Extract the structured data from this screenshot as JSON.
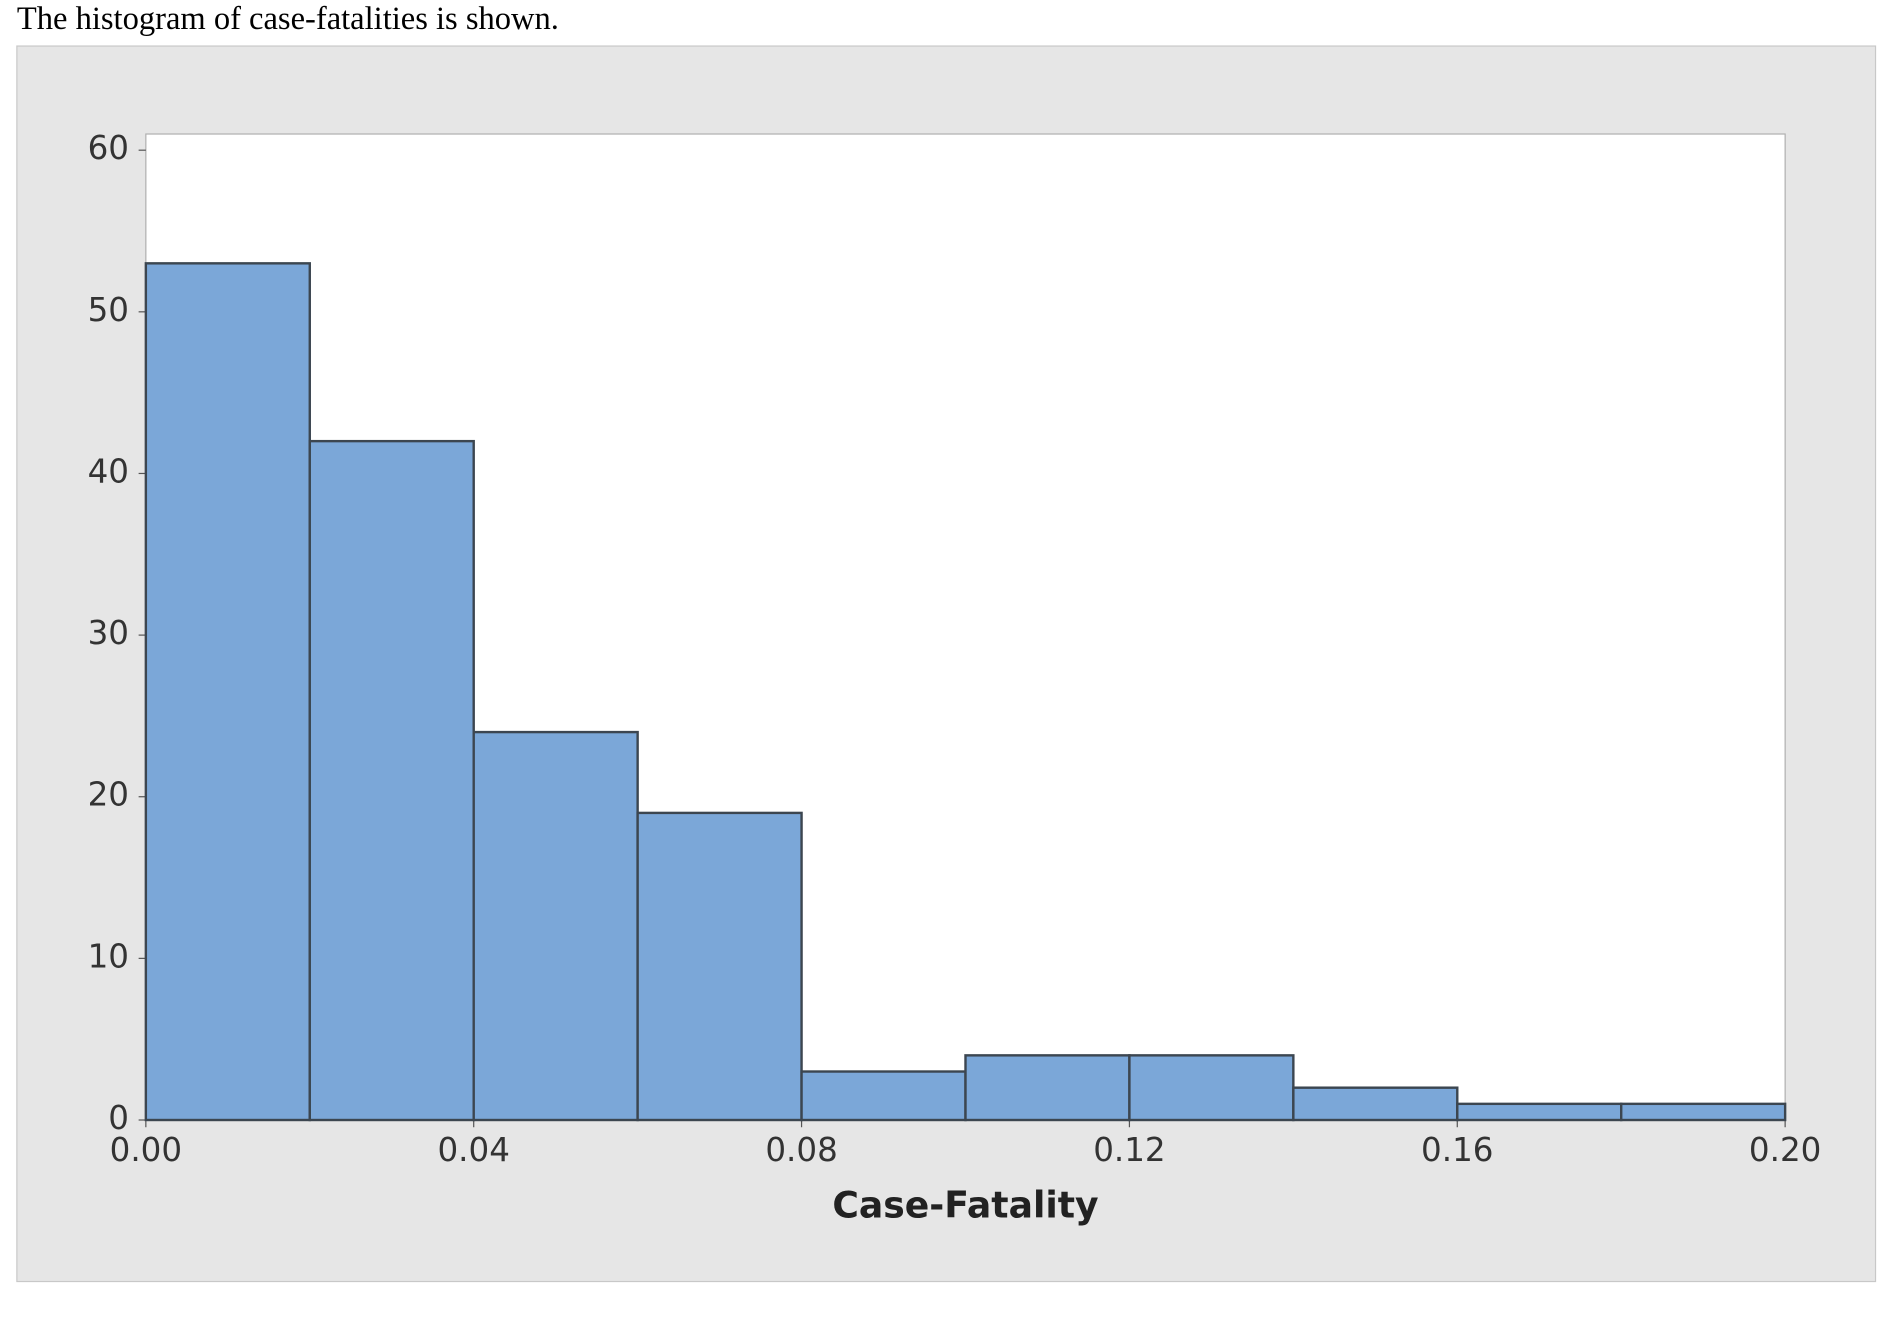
{
  "caption": "The histogram of case-fatalities is shown.",
  "chart_data": {
    "type": "histogram",
    "xlabel": "Case-Fatality",
    "bins": [
      0,
      0.02,
      0.04,
      0.06,
      0.08,
      0.1,
      0.12,
      0.14,
      0.16,
      0.18,
      0.2
    ],
    "values": [
      53,
      42,
      24,
      19,
      3,
      4,
      4,
      2,
      1,
      1
    ],
    "color": "#7ba7d8",
    "xlim": [
      0,
      0.2
    ],
    "xticks": [
      {
        "value": 0,
        "label": "0.00"
      },
      0.04,
      0.08,
      0.12,
      0.16,
      {
        "value": 0.2,
        "label": "0.20"
      }
    ],
    "ylim": [
      0,
      61
    ],
    "yticks": [
      0,
      10,
      20,
      30,
      40,
      50,
      60
    ],
    "grid": false
  }
}
